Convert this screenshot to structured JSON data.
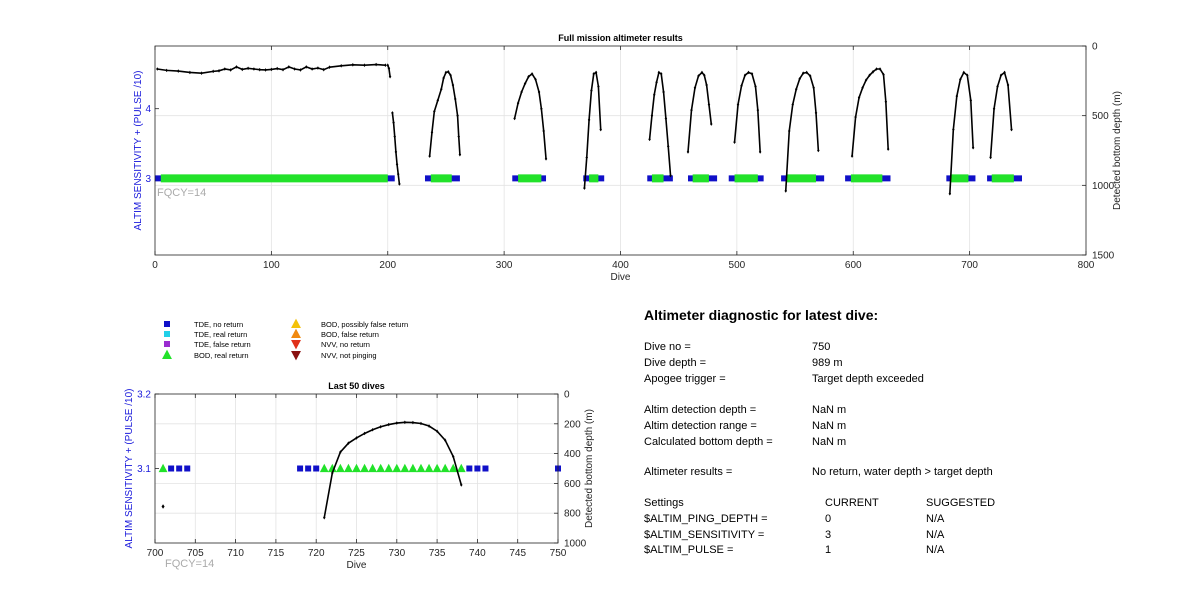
{
  "colors": {
    "tde_no_return": "#1010c8",
    "tde_real_return": "#22d0e8",
    "tde_false_return": "#9a2cd0",
    "bod_real_return": "#22e22a",
    "bod_possibly_false_return": "#f4c20a",
    "bod_false_return": "#f08a10",
    "nvv_no_return": "#e0301a",
    "nvv_not_pinging": "#8a1010",
    "depth_line": "#000000",
    "fqcy_text": "#aaaaaa",
    "left_axis": "#1a1adb"
  },
  "chart_data": [
    {
      "type": "line",
      "title": "Full mission altimeter results",
      "xlabel": "Dive",
      "ylabel": "ALTIM SENSITIVITY + (PULSE /10)",
      "ylabel_right": "Detected bottom depth (m)",
      "xlim": [
        0,
        800
      ],
      "ylim": [
        1.9,
        4.9
      ],
      "ylim_right": [
        0,
        1500
      ],
      "right_axis_inverted": true,
      "grid": true,
      "annotation": "FQCY=14",
      "x_ticks": [
        "0",
        "100",
        "200",
        "300",
        "400",
        "500",
        "600",
        "700",
        "800"
      ],
      "y_ticks": [
        "3",
        "4"
      ],
      "y_ticks_right": [
        "0",
        "500",
        "1000",
        "1500"
      ],
      "tde_no_return_segments": [
        [
          0,
          206
        ],
        [
          232,
          262
        ],
        [
          307,
          336
        ],
        [
          368,
          386
        ],
        [
          423,
          445
        ],
        [
          458,
          483
        ],
        [
          493,
          523
        ],
        [
          538,
          575
        ],
        [
          593,
          632
        ],
        [
          680,
          705
        ],
        [
          715,
          745
        ]
      ],
      "bod_real_return_segments": [
        [
          5,
          200
        ],
        [
          237,
          255
        ],
        [
          312,
          332
        ],
        [
          373,
          381
        ],
        [
          427,
          437
        ],
        [
          462,
          476
        ],
        [
          498,
          518
        ],
        [
          543,
          568
        ],
        [
          598,
          625
        ],
        [
          684,
          699
        ],
        [
          719,
          738
        ]
      ],
      "flat_depth_series": {
        "x": [
          2,
          10,
          20,
          30,
          40,
          50,
          55,
          60,
          65,
          70,
          75,
          80,
          85,
          90,
          95,
          100,
          105,
          110,
          115,
          120,
          125,
          130,
          135,
          140,
          145,
          150,
          160,
          170,
          180,
          190,
          198
        ],
        "y": [
          165,
          175,
          180,
          190,
          195,
          182,
          178,
          165,
          172,
          150,
          168,
          160,
          165,
          170,
          172,
          168,
          162,
          170,
          150,
          165,
          172,
          150,
          165,
          158,
          170,
          152,
          142,
          135,
          138,
          133,
          138
        ]
      },
      "depth_series": [
        {
          "x": [
            200,
            201,
            202
          ],
          "y": [
            138,
            160,
            220
          ]
        },
        {
          "x": [
            204,
            205,
            206,
            207,
            208,
            209,
            210
          ],
          "y": [
            480,
            550,
            650,
            760,
            850,
            920,
            990
          ]
        },
        {
          "x": [
            236,
            238,
            240,
            243,
            246,
            248,
            250,
            252,
            254,
            256,
            258,
            260,
            261,
            262
          ],
          "y": [
            790,
            620,
            470,
            390,
            310,
            230,
            190,
            185,
            210,
            280,
            380,
            500,
            650,
            780
          ]
        },
        {
          "x": [
            309,
            312,
            315,
            318,
            321,
            324,
            327,
            330,
            332,
            334,
            336
          ],
          "y": [
            520,
            410,
            330,
            270,
            220,
            200,
            240,
            330,
            450,
            610,
            810
          ]
        },
        {
          "x": [
            369,
            371,
            373,
            375,
            377,
            379,
            381,
            383
          ],
          "y": [
            1020,
            800,
            530,
            320,
            200,
            190,
            290,
            600
          ]
        },
        {
          "x": [
            425,
            427,
            429,
            431,
            433,
            435,
            437,
            439,
            441,
            443
          ],
          "y": [
            670,
            500,
            350,
            260,
            190,
            200,
            330,
            520,
            720,
            930
          ]
        },
        {
          "x": [
            458,
            461,
            464,
            467,
            470,
            472,
            474,
            476,
            478
          ],
          "y": [
            760,
            460,
            300,
            215,
            190,
            210,
            280,
            420,
            560
          ]
        },
        {
          "x": [
            498,
            501,
            504,
            507,
            510,
            513,
            516,
            518,
            520
          ],
          "y": [
            690,
            420,
            285,
            210,
            190,
            200,
            290,
            460,
            760
          ]
        },
        {
          "x": [
            542,
            545,
            548,
            551,
            554,
            557,
            560,
            563,
            566,
            568,
            570
          ],
          "y": [
            1040,
            610,
            420,
            310,
            235,
            195,
            190,
            215,
            300,
            480,
            750
          ]
        },
        {
          "x": [
            599,
            602,
            605,
            608,
            611,
            614,
            617,
            620,
            623,
            626,
            628,
            630
          ],
          "y": [
            790,
            510,
            370,
            300,
            245,
            210,
            185,
            165,
            165,
            205,
            400,
            740
          ]
        },
        {
          "x": [
            683,
            686,
            689,
            692,
            695,
            698,
            701,
            703
          ],
          "y": [
            1060,
            600,
            360,
            240,
            190,
            210,
            390,
            730
          ]
        },
        {
          "x": [
            718,
            721,
            724,
            727,
            730,
            733,
            736
          ],
          "y": [
            800,
            450,
            290,
            210,
            190,
            280,
            600
          ]
        }
      ]
    },
    {
      "type": "line",
      "title": "Last 50 dives",
      "xlabel": "Dive",
      "ylabel": "ALTIM SENSITIVITY + (PULSE /10)",
      "ylabel_right": "Detected bottom depth (m)",
      "xlim": [
        700,
        750
      ],
      "ylim": [
        3.0,
        3.2
      ],
      "ylim_right": [
        0,
        1000
      ],
      "right_axis_inverted": true,
      "grid": true,
      "annotation": "FQCY=14",
      "x_ticks": [
        "700",
        "705",
        "710",
        "715",
        "720",
        "725",
        "730",
        "735",
        "740",
        "745",
        "750"
      ],
      "y_ticks": [
        "3.1",
        "3.2"
      ],
      "y_ticks_right": [
        "0",
        "200",
        "400",
        "600",
        "800",
        "1000"
      ],
      "tde_no_return_dives": [
        702,
        703,
        704,
        718,
        719,
        720,
        739,
        740,
        741,
        750
      ],
      "bod_real_return_dives": [
        701,
        721,
        722,
        723,
        724,
        725,
        726,
        727,
        728,
        729,
        730,
        731,
        732,
        733,
        734,
        735,
        736,
        737,
        738
      ],
      "depth_series": {
        "x": [
          721,
          722,
          723,
          724,
          725,
          726,
          727,
          728,
          729,
          730,
          731,
          732,
          733,
          734,
          735,
          736,
          737,
          738
        ],
        "y": [
          830,
          530,
          390,
          330,
          295,
          265,
          240,
          220,
          205,
          195,
          190,
          192,
          198,
          215,
          250,
          310,
          420,
          610
        ]
      },
      "isolated_points": [
        {
          "x": 701,
          "y": 755
        }
      ]
    }
  ],
  "legend": [
    {
      "label": "TDE, no return",
      "marker": "square",
      "color_key": "tde_no_return"
    },
    {
      "label": "TDE, real return",
      "marker": "square",
      "color_key": "tde_real_return"
    },
    {
      "label": "TDE, false return",
      "marker": "square",
      "color_key": "tde_false_return"
    },
    {
      "label": "BOD, real return",
      "marker": "triangle-up",
      "color_key": "bod_real_return"
    },
    {
      "label": "BOD, possibly false return",
      "marker": "triangle-up",
      "color_key": "bod_possibly_false_return"
    },
    {
      "label": "BOD, false return",
      "marker": "triangle-up",
      "color_key": "bod_false_return"
    },
    {
      "label": "NVV, no return",
      "marker": "triangle-down",
      "color_key": "nvv_no_return"
    },
    {
      "label": "NVV, not pinging",
      "marker": "triangle-down",
      "color_key": "nvv_not_pinging"
    }
  ],
  "diagnostic": {
    "title": "Altimeter diagnostic for latest dive:",
    "rows": [
      {
        "label": "Dive no =",
        "value": "750"
      },
      {
        "label": "Dive depth =",
        "value": "989 m"
      },
      {
        "label": "Apogee trigger =",
        "value": "Target depth exceeded"
      },
      {
        "label": "Altim detection depth =",
        "value": "NaN m"
      },
      {
        "label": "Altim detection range =",
        "value": "NaN m"
      },
      {
        "label": "Calculated bottom depth =",
        "value": "NaN m"
      },
      {
        "label": "Altimeter results =",
        "value": "No return, water depth > target depth"
      }
    ],
    "settings_header": {
      "label": "Settings",
      "current": "CURRENT",
      "suggested": "SUGGESTED"
    },
    "settings": [
      {
        "label": "$ALTIM_PING_DEPTH =",
        "current": "0",
        "suggested": "N/A"
      },
      {
        "label": "$ALTIM_SENSITIVITY =",
        "current": "3",
        "suggested": "N/A"
      },
      {
        "label": "$ALTIM_PULSE =",
        "current": "1",
        "suggested": "N/A"
      }
    ]
  }
}
